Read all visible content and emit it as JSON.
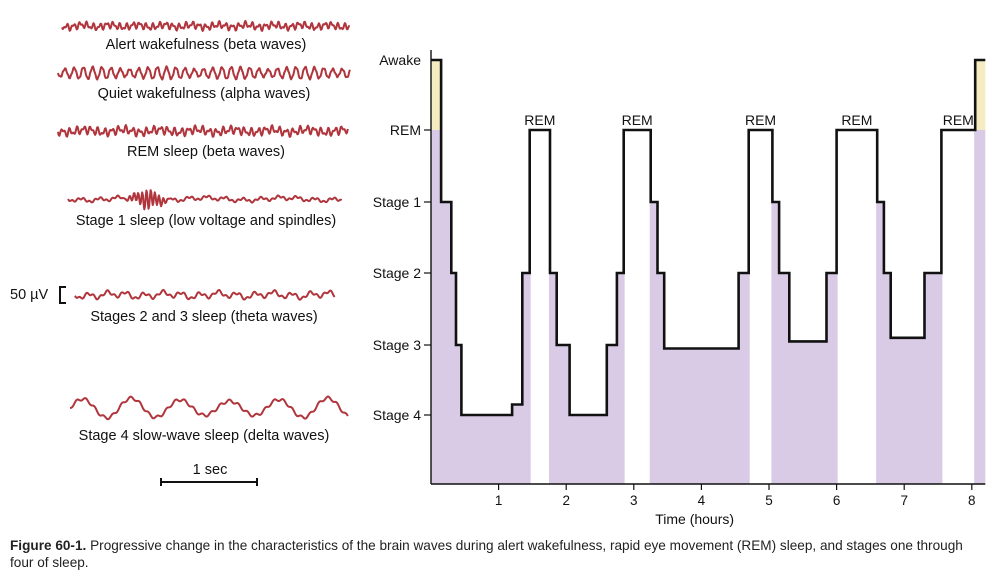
{
  "eeg_panel": {
    "traces": [
      {
        "id": "beta-alert",
        "label": "Alert wakefulness (beta waves)"
      },
      {
        "id": "alpha",
        "label": "Quiet wakefulness (alpha waves)"
      },
      {
        "id": "beta-rem",
        "label": "REM sleep (beta waves)"
      },
      {
        "id": "stage1",
        "label": "Stage 1 sleep (low voltage and spindles)"
      },
      {
        "id": "theta",
        "label": "Stages 2 and 3 sleep (theta waves)"
      },
      {
        "id": "delta",
        "label": "Stage 4 slow-wave sleep (delta waves)"
      }
    ],
    "voltage_scale_label": "50 µV",
    "time_scale_label": "1 sec",
    "wave_color": "#b0353c"
  },
  "chart_data": {
    "type": "line",
    "xlabel": "Time (hours)",
    "ylabel": "",
    "x_ticks": [
      1,
      2,
      3,
      4,
      5,
      6,
      7,
      8
    ],
    "xlim": [
      0,
      8.2
    ],
    "y_levels": [
      "Awake",
      "REM",
      "Stage 1",
      "Stage 2",
      "Stage 3",
      "Stage 4"
    ],
    "rem_label": "REM",
    "hypnogram": [
      {
        "t": 0.0,
        "stage": 0
      },
      {
        "t": 0.15,
        "stage": 0
      },
      {
        "t": 0.15,
        "stage": 1
      },
      {
        "t": 0.15,
        "stage": 2
      },
      {
        "t": 0.3,
        "stage": 2
      },
      {
        "t": 0.3,
        "stage": 3
      },
      {
        "t": 0.37,
        "stage": 3
      },
      {
        "t": 0.37,
        "stage": 4
      },
      {
        "t": 0.45,
        "stage": 4
      },
      {
        "t": 0.45,
        "stage": 5
      },
      {
        "t": 1.2,
        "stage": 5
      },
      {
        "t": 1.2,
        "stage": 4.85
      },
      {
        "t": 1.35,
        "stage": 4.85
      },
      {
        "t": 1.35,
        "stage": 3
      },
      {
        "t": 1.46,
        "stage": 3
      },
      {
        "t": 1.46,
        "stage": 1
      },
      {
        "t": 1.76,
        "stage": 1
      },
      {
        "t": 1.76,
        "stage": 3
      },
      {
        "t": 1.86,
        "stage": 3
      },
      {
        "t": 1.86,
        "stage": 4
      },
      {
        "t": 2.05,
        "stage": 4
      },
      {
        "t": 2.05,
        "stage": 5
      },
      {
        "t": 2.6,
        "stage": 5
      },
      {
        "t": 2.6,
        "stage": 4
      },
      {
        "t": 2.75,
        "stage": 4
      },
      {
        "t": 2.75,
        "stage": 3
      },
      {
        "t": 2.85,
        "stage": 3
      },
      {
        "t": 2.85,
        "stage": 1
      },
      {
        "t": 3.25,
        "stage": 1
      },
      {
        "t": 3.25,
        "stage": 2
      },
      {
        "t": 3.35,
        "stage": 2
      },
      {
        "t": 3.35,
        "stage": 3
      },
      {
        "t": 3.45,
        "stage": 3
      },
      {
        "t": 3.45,
        "stage": 4.05
      },
      {
        "t": 4.55,
        "stage": 4.05
      },
      {
        "t": 4.55,
        "stage": 3
      },
      {
        "t": 4.7,
        "stage": 3
      },
      {
        "t": 4.7,
        "stage": 1
      },
      {
        "t": 5.05,
        "stage": 1
      },
      {
        "t": 5.05,
        "stage": 2
      },
      {
        "t": 5.15,
        "stage": 2
      },
      {
        "t": 5.15,
        "stage": 3
      },
      {
        "t": 5.3,
        "stage": 3
      },
      {
        "t": 5.3,
        "stage": 3.95
      },
      {
        "t": 5.85,
        "stage": 3.95
      },
      {
        "t": 5.85,
        "stage": 3
      },
      {
        "t": 6.0,
        "stage": 3
      },
      {
        "t": 6.0,
        "stage": 1
      },
      {
        "t": 6.6,
        "stage": 1
      },
      {
        "t": 6.6,
        "stage": 2
      },
      {
        "t": 6.7,
        "stage": 2
      },
      {
        "t": 6.7,
        "stage": 3
      },
      {
        "t": 6.8,
        "stage": 3
      },
      {
        "t": 6.8,
        "stage": 3.9
      },
      {
        "t": 7.3,
        "stage": 3.9
      },
      {
        "t": 7.3,
        "stage": 3
      },
      {
        "t": 7.55,
        "stage": 3
      },
      {
        "t": 7.55,
        "stage": 1
      },
      {
        "t": 8.05,
        "stage": 1
      },
      {
        "t": 8.05,
        "stage": 0
      },
      {
        "t": 8.2,
        "stage": 0
      }
    ],
    "rem_periods": [
      [
        1.46,
        1.76
      ],
      [
        2.85,
        3.25
      ],
      [
        4.7,
        5.05
      ],
      [
        6.0,
        6.6
      ],
      [
        7.55,
        8.05
      ]
    ],
    "awake_periods": [
      [
        0.0,
        0.15
      ],
      [
        8.05,
        8.2
      ]
    ],
    "colors": {
      "sleep_fill": "#d9cbe6",
      "awake_fill": "#f5ecc2",
      "line": "#111111"
    }
  },
  "caption": {
    "label": "Figure 60-1.",
    "text": "Progressive change in the characteristics of the brain waves during alert wakefulness, rapid eye movement (REM) sleep, and stages one through four of sleep."
  }
}
